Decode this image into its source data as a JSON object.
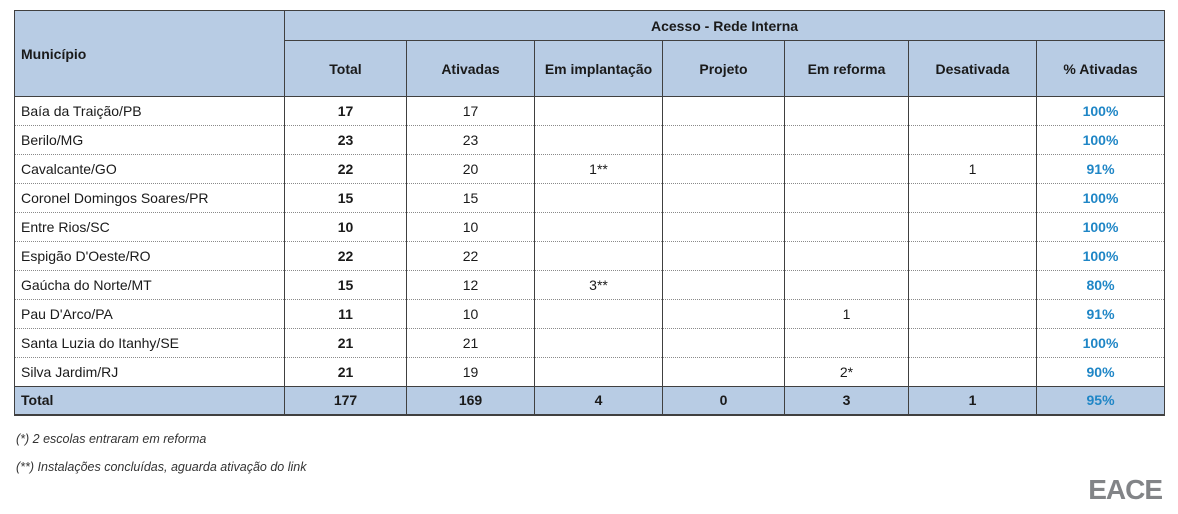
{
  "table": {
    "group_header": "Acesso - Rede Interna",
    "municipio_header": "Município",
    "columns": [
      "Total",
      "Ativadas",
      "Em implantação",
      "Projeto",
      "Em reforma",
      "Desativada",
      "% Ativadas"
    ],
    "rows": [
      [
        "Baía da Traição/PB",
        "17",
        "17",
        "",
        "",
        "",
        "",
        "100%"
      ],
      [
        "Berilo/MG",
        "23",
        "23",
        "",
        "",
        "",
        "",
        "100%"
      ],
      [
        "Cavalcante/GO",
        "22",
        "20",
        "1**",
        "",
        "",
        "1",
        "91%"
      ],
      [
        "Coronel Domingos Soares/PR",
        "15",
        "15",
        "",
        "",
        "",
        "",
        "100%"
      ],
      [
        "Entre Rios/SC",
        "10",
        "10",
        "",
        "",
        "",
        "",
        "100%"
      ],
      [
        "Espigão D'Oeste/RO",
        "22",
        "22",
        "",
        "",
        "",
        "",
        "100%"
      ],
      [
        "Gaúcha do Norte/MT",
        "15",
        "12",
        "3**",
        "",
        "",
        "",
        "80%"
      ],
      [
        "Pau D'Arco/PA",
        "11",
        "10",
        "",
        "",
        "1",
        "",
        "91%"
      ],
      [
        "Santa Luzia do Itanhy/SE",
        "21",
        "21",
        "",
        "",
        "",
        "",
        "100%"
      ],
      [
        "Silva Jardim/RJ",
        "21",
        "19",
        "",
        "",
        "2*",
        "",
        "90%"
      ]
    ],
    "total_row": [
      "Total",
      "177",
      "169",
      "4",
      "0",
      "3",
      "1",
      "95%"
    ]
  },
  "footnotes": {
    "note1": "(*) 2 escolas entraram em reforma",
    "note2": "(**) Instalações concluídas, aguarda ativação do link"
  },
  "logo_text": "EACE",
  "colors": {
    "header_bg": "#B8CCE4",
    "accent_blue": "#1F86C6",
    "border_dark": "#404040"
  }
}
